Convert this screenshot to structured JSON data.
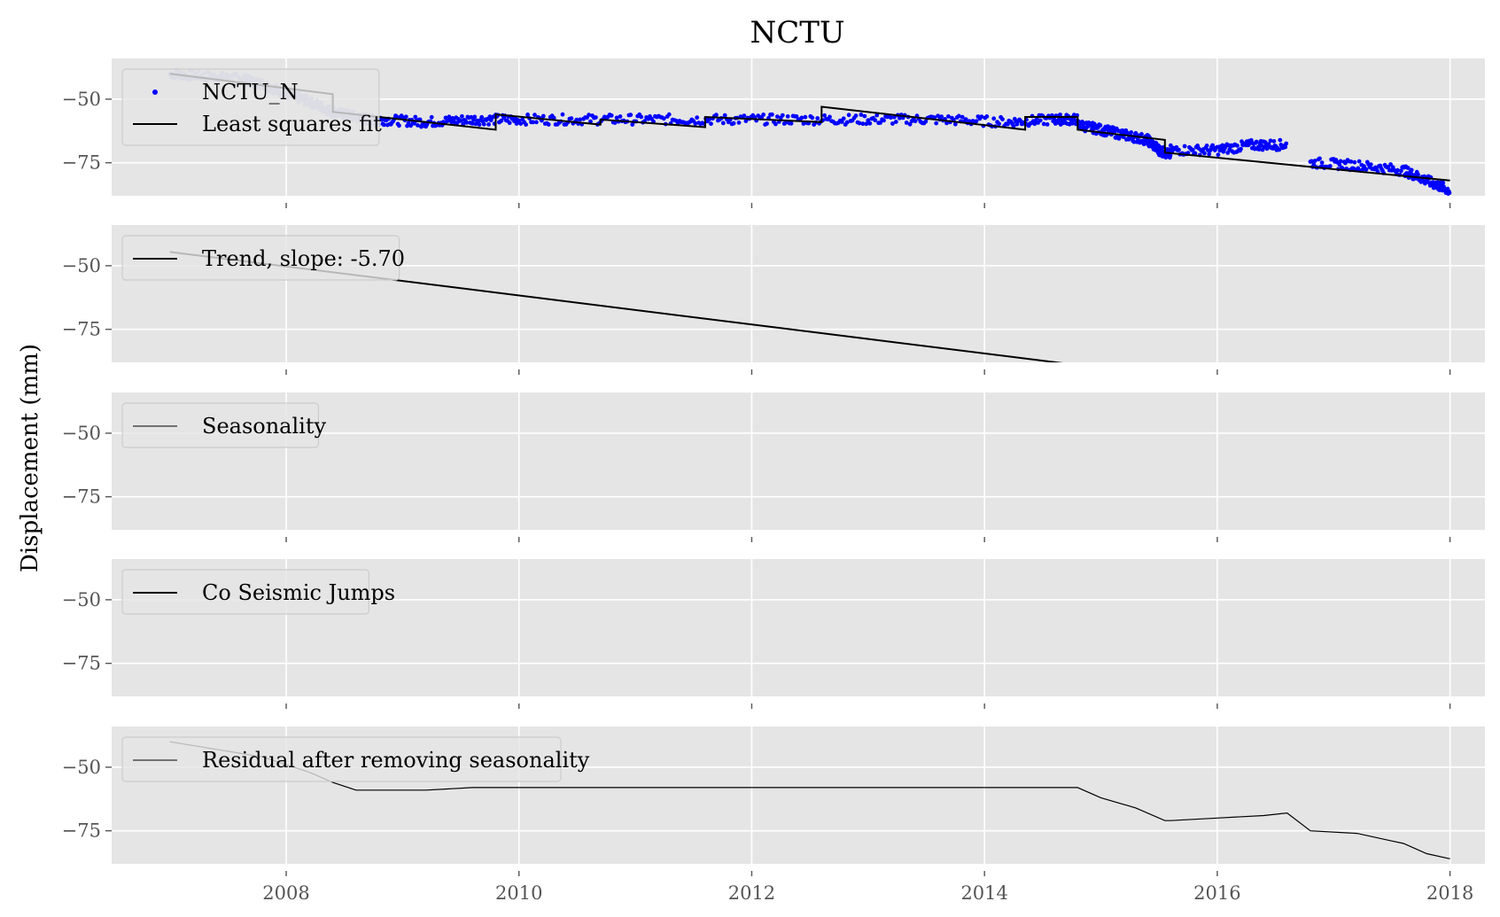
{
  "figure": {
    "title": "NCTU",
    "ylabel": "Displacement (mm)"
  },
  "colors": {
    "axes_bg": "#e5e5e5",
    "grid": "#ffffff",
    "data_blue": "#0000ff",
    "data_faded": "#b9b9e6",
    "line_black": "#000000",
    "line_faded": "#aaaaaa",
    "legend_bg": "#e5e5e5",
    "legend_border": "#cccccc"
  },
  "chart_data": [
    {
      "type": "scatter",
      "panel": "observations",
      "xlim": [
        2006.5,
        2018.3
      ],
      "ylim": [
        -88,
        -34
      ],
      "xticks": [
        2008,
        2010,
        2012,
        2014,
        2016,
        2018
      ],
      "yticks": [
        -50,
        -75
      ],
      "show_xtick_labels": false,
      "legend": {
        "placement": "upper-left",
        "entries": [
          {
            "label": "NCTU_N",
            "kind": "marker"
          },
          {
            "label": "Least squares fit",
            "kind": "line"
          }
        ]
      },
      "series": [
        {
          "name": "NCTU_N",
          "kind": "points",
          "segments": [
            {
              "x": [
                2007.0,
                2007.3,
                2007.6,
                2007.8,
                2008.0,
                2008.2,
                2008.4,
                2008.6,
                2008.8
              ],
              "y": [
                -40,
                -41,
                -42,
                -44,
                -48,
                -51,
                -55,
                -57,
                -59
              ]
            },
            {
              "x": [
                2008.8,
                2009.2,
                2009.6,
                2010.0,
                2010.6,
                2011.2,
                2011.8,
                2012.4,
                2013.0,
                2013.6,
                2014.2,
                2014.6,
                2014.8
              ],
              "y": [
                -58,
                -59,
                -58,
                -58,
                -58,
                -58,
                -58,
                -58,
                -58,
                -58,
                -59,
                -58,
                -58
              ]
            },
            {
              "x": [
                2014.8,
                2015.0,
                2015.2,
                2015.4,
                2015.5,
                2015.6
              ],
              "y": [
                -60,
                -62,
                -64,
                -66,
                -70,
                -72
              ]
            },
            {
              "x": [
                2015.6,
                2016.0,
                2016.3,
                2016.6
              ],
              "y": [
                -70,
                -70,
                -68,
                -68
              ]
            },
            {
              "x": [
                2016.8,
                2017.2,
                2017.6,
                2017.8,
                2018.0
              ],
              "y": [
                -75,
                -76,
                -78,
                -82,
                -86
              ]
            }
          ]
        },
        {
          "name": "Least squares fit",
          "kind": "step-line",
          "x": [
            2007.0,
            2008.4,
            2008.4,
            2009.8,
            2009.8,
            2010.7,
            2010.7,
            2011.6,
            2011.6,
            2012.6,
            2012.6,
            2014.35,
            2014.35,
            2014.8,
            2014.8,
            2015.55,
            2015.55,
            2018.0
          ],
          "y": [
            -40,
            -48,
            -55,
            -62,
            -56,
            -60,
            -58,
            -61,
            -57,
            -59,
            -53,
            -62,
            -57,
            -57,
            -62,
            -66,
            -71,
            -82
          ]
        }
      ]
    },
    {
      "type": "line",
      "panel": "trend",
      "xlim": [
        2006.5,
        2018.3
      ],
      "ylim": [
        -88,
        -34
      ],
      "xticks": [
        2008,
        2010,
        2012,
        2014,
        2016,
        2018
      ],
      "yticks": [
        -50,
        -75
      ],
      "show_xtick_labels": false,
      "legend": {
        "placement": "upper-left",
        "entries": [
          {
            "label": "Trend, slope: -5.70",
            "kind": "line"
          }
        ]
      },
      "series": [
        {
          "name": "Trend, slope: -5.70",
          "kind": "line",
          "x": [
            2007.0,
            2018.0
          ],
          "y": [
            -44.6,
            -107.3
          ]
        }
      ]
    },
    {
      "type": "line",
      "panel": "seasonality",
      "xlim": [
        2006.5,
        2018.3
      ],
      "ylim": [
        -88,
        -34
      ],
      "xticks": [
        2008,
        2010,
        2012,
        2014,
        2016,
        2018
      ],
      "yticks": [
        -50,
        -75
      ],
      "show_xtick_labels": false,
      "legend": {
        "placement": "upper-left",
        "entries": [
          {
            "label": "Seasonality",
            "kind": "thin-line"
          }
        ]
      },
      "series": []
    },
    {
      "type": "line",
      "panel": "jumps",
      "xlim": [
        2006.5,
        2018.3
      ],
      "ylim": [
        -88,
        -34
      ],
      "xticks": [
        2008,
        2010,
        2012,
        2014,
        2016,
        2018
      ],
      "yticks": [
        -50,
        -75
      ],
      "show_xtick_labels": false,
      "legend": {
        "placement": "upper-left",
        "entries": [
          {
            "label": "Co Seismic Jumps",
            "kind": "line"
          }
        ]
      },
      "series": []
    },
    {
      "type": "line",
      "panel": "residual",
      "xlim": [
        2006.5,
        2018.3
      ],
      "ylim": [
        -88,
        -34
      ],
      "xticks": [
        2008,
        2010,
        2012,
        2014,
        2016,
        2018
      ],
      "yticks": [
        -50,
        -75
      ],
      "show_xtick_labels": true,
      "legend": {
        "placement": "upper-left",
        "entries": [
          {
            "label": "Residual after removing seasonality",
            "kind": "thin-line"
          }
        ]
      },
      "series": [
        {
          "name": "Residual after removing seasonality",
          "kind": "line",
          "x": [
            2007.0,
            2007.4,
            2007.8,
            2008.2,
            2008.4,
            2008.6,
            2008.8,
            2009.2,
            2009.6,
            2010.0,
            2010.6,
            2011.2,
            2011.8,
            2012.4,
            2013.0,
            2013.6,
            2014.2,
            2014.8,
            2015.0,
            2015.3,
            2015.55,
            2015.6,
            2016.0,
            2016.4,
            2016.6,
            2016.8,
            2017.2,
            2017.5,
            2017.6,
            2017.8,
            2018.0
          ],
          "y": [
            -40,
            -43,
            -46,
            -52,
            -56,
            -59,
            -59,
            -59,
            -58,
            -58,
            -58,
            -58,
            -58,
            -58,
            -58,
            -58,
            -58,
            -58,
            -62,
            -66,
            -71,
            -71,
            -70,
            -69,
            -68,
            -75,
            -76,
            -79,
            -80,
            -84,
            -86
          ]
        }
      ]
    }
  ]
}
